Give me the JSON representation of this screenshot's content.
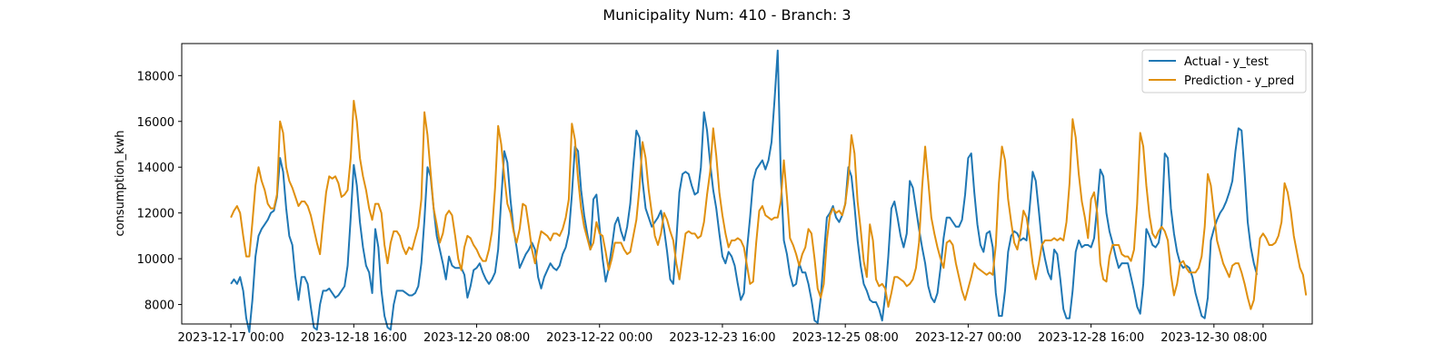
{
  "chart_data": {
    "type": "line",
    "title": "Municipality Num: 410 - Branch: 3",
    "xlabel": "",
    "ylabel": "consumption_kwh",
    "x_start": "2023-12-17 00:00",
    "x_step_hours": 1,
    "xlim": [
      "2023-12-16 08:00",
      "2023-12-31 16:00"
    ],
    "ylim": [
      7150,
      19400
    ],
    "x_ticks": [
      {
        "pos": "2023-12-17 00:00",
        "label": "2023-12-17 00:00"
      },
      {
        "pos": "2023-12-18 16:00",
        "label": "2023-12-18 16:00"
      },
      {
        "pos": "2023-12-20 08:00",
        "label": "2023-12-20 08:00"
      },
      {
        "pos": "2023-12-22 00:00",
        "label": "2023-12-22 00:00"
      },
      {
        "pos": "2023-12-23 16:00",
        "label": "2023-12-23 16:00"
      },
      {
        "pos": "2023-12-25 08:00",
        "label": "2023-12-25 08:00"
      },
      {
        "pos": "2023-12-27 00:00",
        "label": "2023-12-27 00:00"
      },
      {
        "pos": "2023-12-28 16:00",
        "label": "2023-12-28 16:00"
      },
      {
        "pos": "2023-12-30 08:00",
        "label": "2023-12-30 08:00"
      },
      {
        "pos": "2023-12-31 00:00",
        "label": ""
      }
    ],
    "y_ticks": [
      8000,
      10000,
      12000,
      14000,
      16000,
      18000
    ],
    "grid": false,
    "legend": "top-right",
    "series": [
      {
        "name": "Actual - y_test",
        "color": "#1f77b4",
        "values": [
          8900,
          9100,
          8900,
          9200,
          8600,
          7400,
          6800,
          8200,
          10100,
          11000,
          11300,
          11500,
          11700,
          12000,
          12100,
          12700,
          14400,
          13800,
          12200,
          11000,
          10600,
          9200,
          8200,
          9200,
          9200,
          8900,
          7900,
          7000,
          6900,
          8000,
          8600,
          8600,
          8700,
          8500,
          8300,
          8400,
          8600,
          8800,
          9700,
          11800,
          14100,
          13200,
          11600,
          10500,
          9700,
          9400,
          8500,
          11300,
          10500,
          8600,
          7500,
          7000,
          6900,
          8000,
          8600,
          8600,
          8600,
          8500,
          8400,
          8400,
          8500,
          8800,
          9800,
          11700,
          14000,
          13600,
          12200,
          11000,
          10400,
          9800,
          9100,
          10100,
          9700,
          9600,
          9600,
          9600,
          9300,
          8300,
          8800,
          9500,
          9600,
          9800,
          9400,
          9100,
          8900,
          9100,
          9400,
          10400,
          12600,
          14700,
          14200,
          12600,
          11300,
          10500,
          9600,
          9900,
          10200,
          10400,
          10700,
          10400,
          9200,
          8700,
          9200,
          9500,
          9800,
          9600,
          9500,
          9700,
          10200,
          10500,
          11100,
          12800,
          14900,
          14700,
          13000,
          11900,
          11100,
          10400,
          12600,
          12800,
          11400,
          10000,
          9000,
          9600,
          10500,
          11500,
          11800,
          11200,
          10800,
          11400,
          12400,
          14100,
          15600,
          15300,
          13400,
          12200,
          11800,
          11400,
          11600,
          11800,
          12100,
          11300,
          10300,
          9100,
          8900,
          10800,
          12900,
          13700,
          13800,
          13700,
          13200,
          12800,
          12900,
          14000,
          16400,
          15600,
          14200,
          13000,
          12200,
          11100,
          10100,
          9800,
          10300,
          10100,
          9700,
          8900,
          8200,
          8500,
          10400,
          11800,
          13400,
          13900,
          14100,
          14300,
          13900,
          14300,
          15100,
          17000,
          19100,
          13700,
          10800,
          10200,
          9300,
          8800,
          8900,
          9800,
          9400,
          9400,
          8900,
          8200,
          7300,
          7200,
          8300,
          10100,
          11800,
          12000,
          12300,
          11800,
          11600,
          11900,
          12400,
          14000,
          13600,
          12300,
          10800,
          9700,
          8900,
          8600,
          8200,
          8100,
          8100,
          7800,
          7300,
          8400,
          10100,
          12200,
          12500,
          11800,
          11000,
          10500,
          11100,
          13400,
          13100,
          12200,
          11300,
          10500,
          9800,
          8800,
          8300,
          8100,
          8500,
          9600,
          10900,
          11800,
          11800,
          11600,
          11400,
          11400,
          11700,
          12800,
          14400,
          14600,
          12900,
          11500,
          10600,
          10300,
          11100,
          11200,
          10500,
          8500,
          7500,
          7500,
          8600,
          10300,
          11000,
          11200,
          11100,
          10800,
          10900,
          10800,
          12200,
          13800,
          13400,
          12100,
          10700,
          10000,
          9400,
          9100,
          10400,
          10200,
          9100,
          7800,
          7400,
          7400,
          8600,
          10300,
          10800,
          10500,
          10600,
          10600,
          10500,
          10900,
          12300,
          13900,
          13600,
          12000,
          11200,
          10700,
          10100,
          9600,
          9800,
          9800,
          9800,
          9200,
          8600,
          7900,
          7600,
          8900,
          11300,
          11000,
          10600,
          10500,
          10700,
          11500,
          14600,
          14400,
          12200,
          11100,
          10300,
          9800,
          9600,
          9700,
          9600,
          9200,
          8500,
          8000,
          7500,
          7400,
          8300,
          10800,
          11300,
          11700,
          12000,
          12200,
          12500,
          12900,
          13400,
          14700,
          15700,
          15600,
          13700,
          11600,
          10500,
          9800,
          9300
        ]
      },
      {
        "name": "Prediction - y_pred",
        "color": "#e0900f",
        "values": [
          11800,
          12100,
          12300,
          12000,
          11000,
          10100,
          10100,
          11600,
          13200,
          14000,
          13400,
          13000,
          12400,
          12200,
          12200,
          12800,
          16000,
          15500,
          14000,
          13400,
          13100,
          12700,
          12300,
          12500,
          12500,
          12300,
          11900,
          11300,
          10700,
          10200,
          11600,
          12900,
          13600,
          13500,
          13600,
          13300,
          12700,
          12800,
          13000,
          14400,
          16900,
          16000,
          14400,
          13600,
          13000,
          12200,
          11700,
          12400,
          12400,
          12000,
          10600,
          9800,
          10700,
          11200,
          11200,
          11000,
          10500,
          10200,
          10500,
          10400,
          10900,
          11400,
          12600,
          16400,
          15400,
          13800,
          12200,
          11500,
          10700,
          11100,
          11900,
          12100,
          11900,
          11000,
          10000,
          9500,
          10500,
          11000,
          10900,
          10600,
          10400,
          10100,
          9900,
          9900,
          10400,
          11200,
          13100,
          15800,
          15000,
          13600,
          12400,
          12000,
          11200,
          10700,
          11300,
          12400,
          12300,
          11400,
          10400,
          9800,
          10600,
          11200,
          11100,
          11000,
          10800,
          11100,
          11100,
          11000,
          11300,
          11800,
          12600,
          15900,
          15200,
          13500,
          12200,
          11400,
          10900,
          10400,
          10700,
          11600,
          11100,
          11000,
          10300,
          9500,
          10000,
          10700,
          10700,
          10700,
          10400,
          10200,
          10300,
          11000,
          11700,
          13100,
          15100,
          14400,
          13000,
          12000,
          11000,
          10600,
          11100,
          12000,
          11700,
          11200,
          10800,
          9800,
          9100,
          10100,
          11100,
          11200,
          11100,
          11100,
          10900,
          11000,
          11600,
          12800,
          13800,
          15700,
          14500,
          12900,
          11900,
          11100,
          10500,
          10800,
          10800,
          10900,
          10800,
          10500,
          9700,
          8900,
          9000,
          10700,
          12100,
          12300,
          11900,
          11800,
          11700,
          11800,
          11800,
          12500,
          14300,
          12700,
          10900,
          10600,
          10200,
          9700,
          10200,
          10500,
          11300,
          11100,
          10000,
          8700,
          8300,
          8900,
          10800,
          11900,
          12200,
          12000,
          12100,
          11900,
          12400,
          13500,
          15400,
          14600,
          12500,
          11300,
          9900,
          9200,
          11500,
          10800,
          9100,
          8800,
          8900,
          8700,
          7900,
          8500,
          9200,
          9200,
          9100,
          9000,
          8800,
          8900,
          9100,
          9600,
          10700,
          13100,
          14900,
          13400,
          11800,
          11100,
          10500,
          10000,
          9600,
          10700,
          10800,
          10600,
          9800,
          9200,
          8600,
          8200,
          8700,
          9200,
          9800,
          9600,
          9500,
          9400,
          9300,
          9400,
          9300,
          10600,
          13300,
          14900,
          14300,
          12600,
          11600,
          10700,
          10400,
          11100,
          12100,
          11800,
          10900,
          9800,
          9100,
          9800,
          10600,
          10800,
          10800,
          10800,
          10900,
          10800,
          10900,
          10800,
          11600,
          13300,
          16100,
          15300,
          13700,
          12500,
          11800,
          10900,
          12600,
          12900,
          12000,
          9800,
          9100,
          9000,
          10100,
          10600,
          10600,
          10600,
          10200,
          10100,
          10100,
          9900,
          10400,
          12400,
          15500,
          14900,
          13200,
          11900,
          11100,
          10900,
          11200,
          11400,
          11200,
          10800,
          9300,
          8400,
          8900,
          9800,
          9900,
          9600,
          9400,
          9400,
          9400,
          9600,
          10100,
          11400,
          13700,
          13200,
          12000,
          10800,
          10300,
          9800,
          9500,
          9200,
          9700,
          9800,
          9800,
          9400,
          8900,
          8300,
          7800,
          8200,
          9600,
          10900,
          11100,
          10900,
          10600,
          10600,
          10700,
          11000,
          11600,
          13300,
          12900,
          12100,
          11000,
          10300,
          9600,
          9300,
          8400
        ]
      }
    ]
  }
}
